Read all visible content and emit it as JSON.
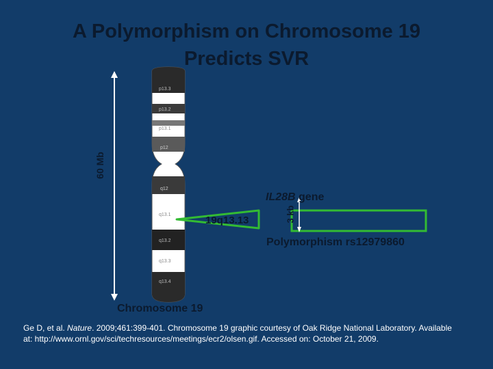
{
  "title": {
    "line1": "A Polymorphism on Chromosome 19",
    "line2": "Predicts SVR"
  },
  "chromosome": {
    "label": "Chromosome 19",
    "size_label": "60 Mb",
    "bands": [
      "p13.3",
      "p13.2",
      "p13.1",
      "p12",
      "q12",
      "q13.1",
      "q13.2",
      "q13.3",
      "q13.4"
    ],
    "pointer_label": "19q13.13"
  },
  "gene": {
    "name": "IL28B",
    "suffix": " gene",
    "length_label": "3 kb",
    "polymorphism_label": "Polymorphism rs12979860"
  },
  "citation": {
    "authors": "Ge D, et al. ",
    "journal": "Nature",
    "rest": ". 2009;461:399-401. Chromosome 19 graphic courtesy of Oak Ridge National Laboratory. Available at: http://www.ornl.gov/sci/techresources/meetings/ecr2/olsen.gif. Accessed on: October 21, 2009."
  },
  "colors": {
    "background": "#123c69",
    "dark_text": "#0b1a2e",
    "green_marker": "#33bb33",
    "chromosome_dark": "#222222",
    "chromosome_light": "#ffffff"
  }
}
